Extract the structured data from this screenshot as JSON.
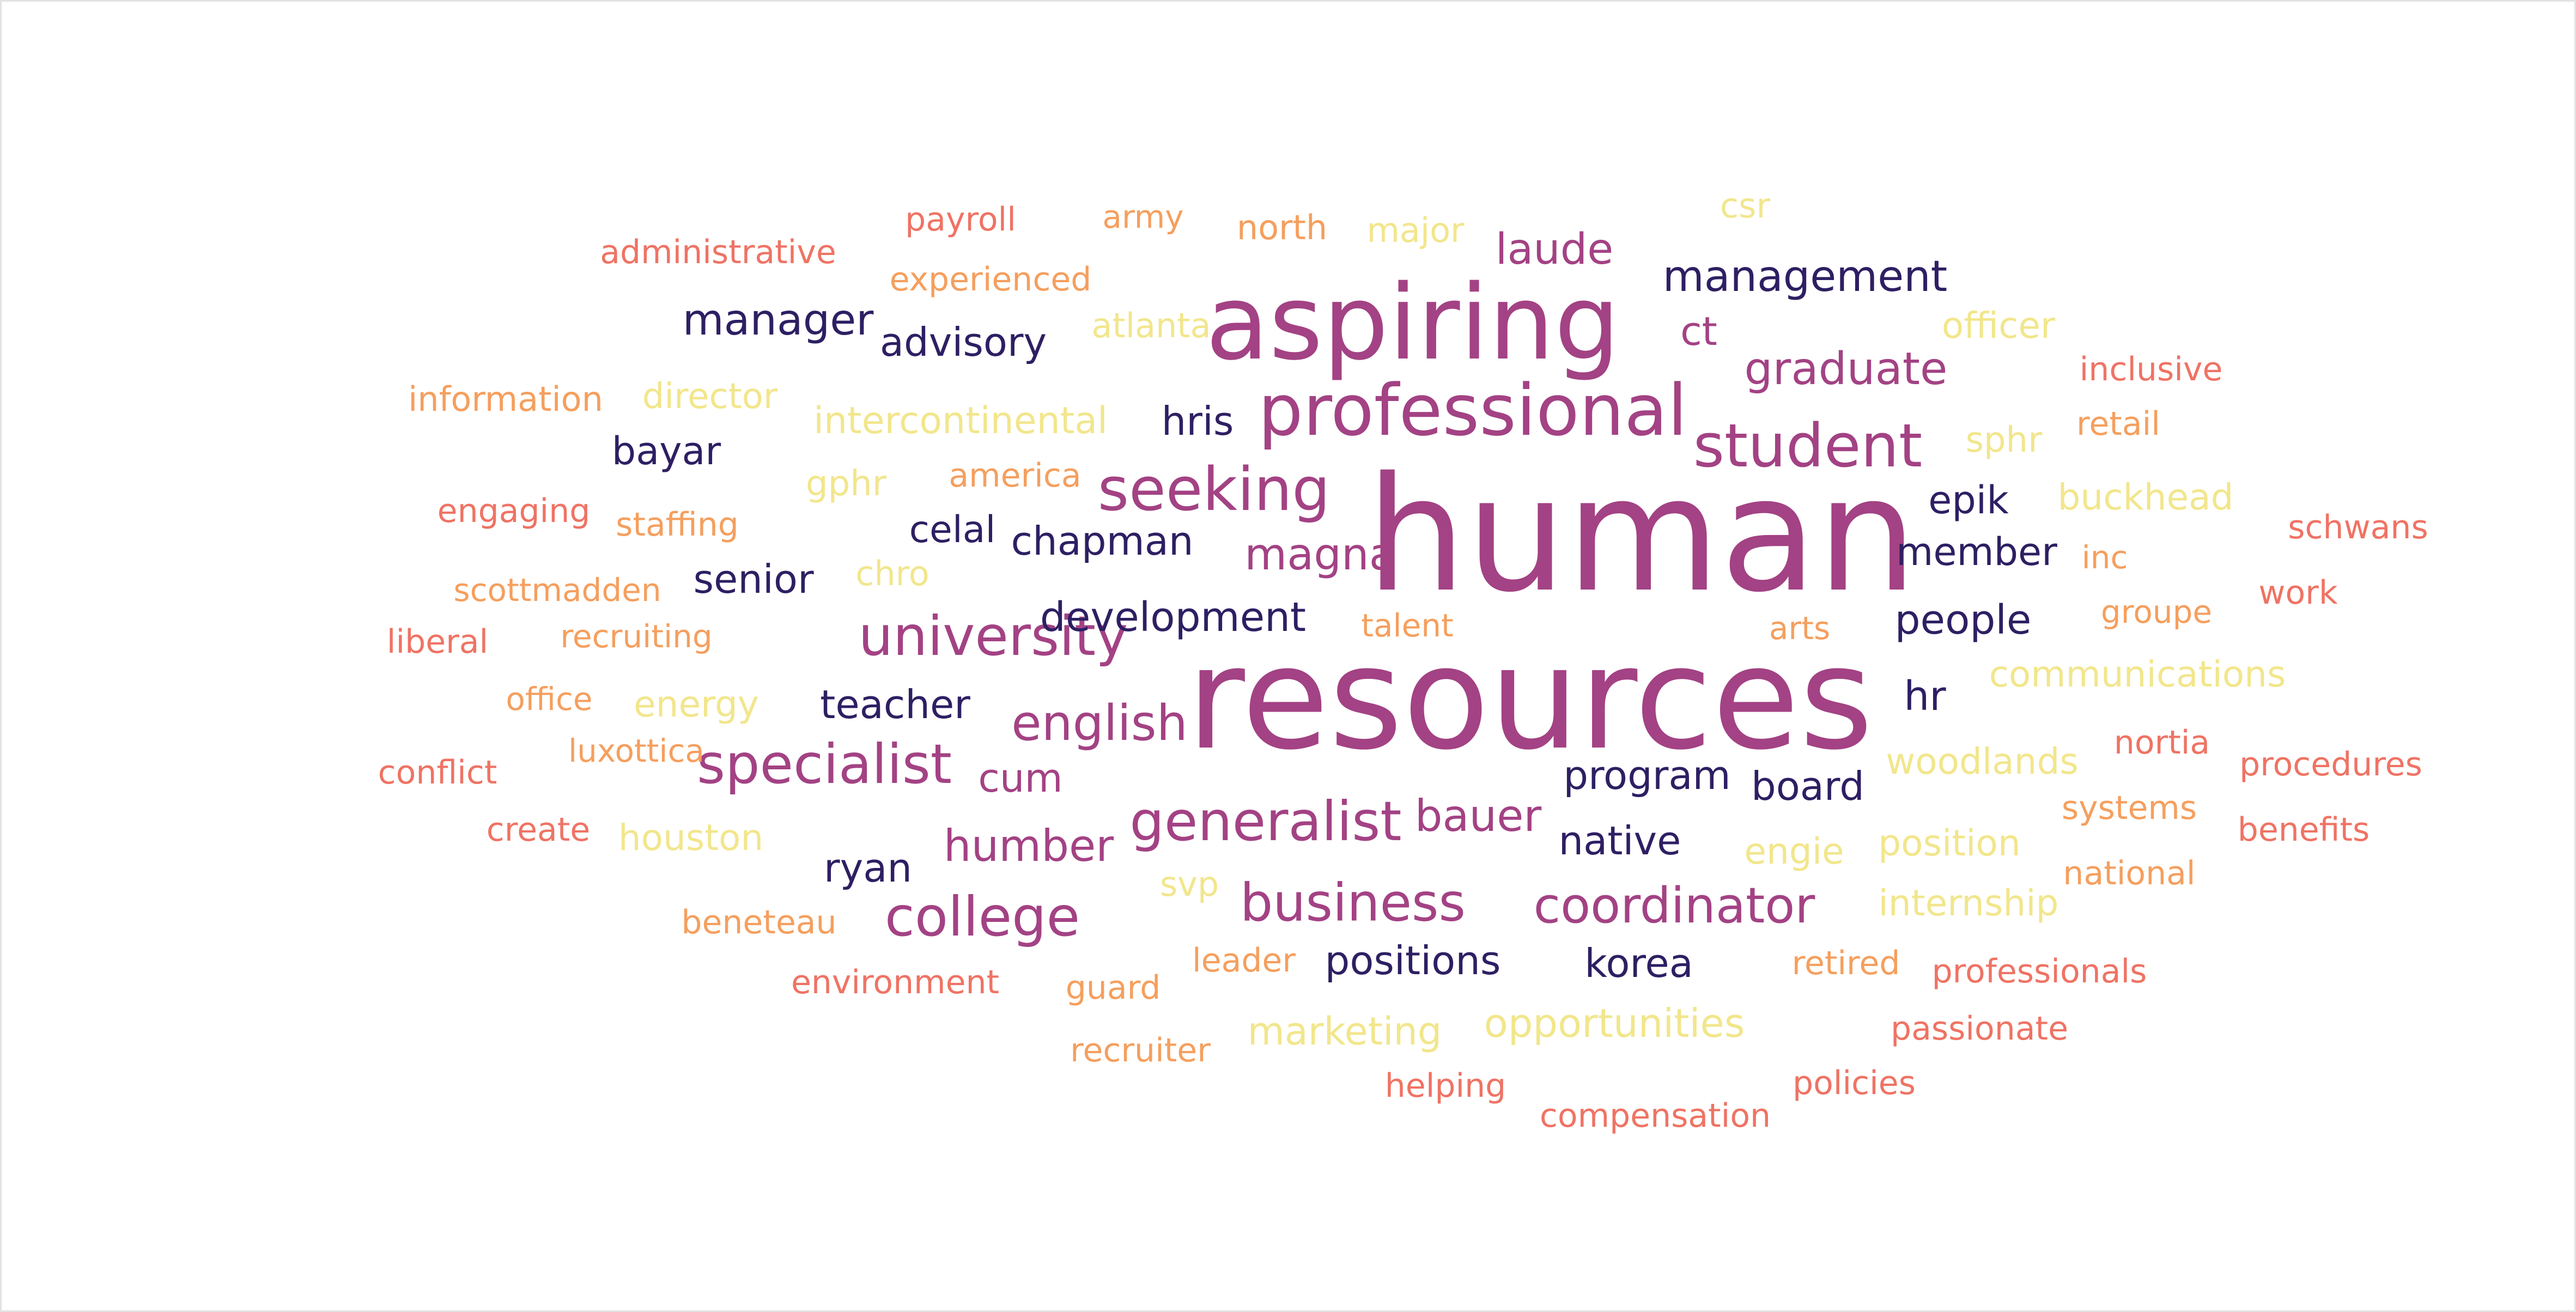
{
  "palette": {
    "magenta": "#a34284",
    "navy": "#2e1f63",
    "coral": "#ef7364",
    "orange": "#f59f5e",
    "yellow": "#f2e68c",
    "background": "#ffffff"
  },
  "words": [
    {
      "text": "human",
      "color": "magenta"
    },
    {
      "text": "resources",
      "color": "magenta"
    },
    {
      "text": "aspiring",
      "color": "magenta"
    },
    {
      "text": "professional",
      "color": "magenta"
    },
    {
      "text": "student",
      "color": "magenta"
    },
    {
      "text": "seeking",
      "color": "magenta"
    },
    {
      "text": "university",
      "color": "magenta"
    },
    {
      "text": "specialist",
      "color": "magenta"
    },
    {
      "text": "generalist",
      "color": "magenta"
    },
    {
      "text": "college",
      "color": "magenta"
    },
    {
      "text": "business",
      "color": "magenta"
    },
    {
      "text": "coordinator",
      "color": "magenta"
    },
    {
      "text": "english",
      "color": "magenta"
    },
    {
      "text": "graduate",
      "color": "magenta"
    },
    {
      "text": "laude",
      "color": "magenta"
    },
    {
      "text": "magna",
      "color": "magenta"
    },
    {
      "text": "humber",
      "color": "magenta"
    },
    {
      "text": "bauer",
      "color": "magenta"
    },
    {
      "text": "cum",
      "color": "magenta"
    },
    {
      "text": "ct",
      "color": "magenta"
    },
    {
      "text": "management",
      "color": "navy"
    },
    {
      "text": "manager",
      "color": "navy"
    },
    {
      "text": "advisory",
      "color": "navy"
    },
    {
      "text": "hris",
      "color": "navy"
    },
    {
      "text": "bayar",
      "color": "navy"
    },
    {
      "text": "celal",
      "color": "navy"
    },
    {
      "text": "chapman",
      "color": "navy"
    },
    {
      "text": "senior",
      "color": "navy"
    },
    {
      "text": "development",
      "color": "navy"
    },
    {
      "text": "epik",
      "color": "navy"
    },
    {
      "text": "member",
      "color": "navy"
    },
    {
      "text": "people",
      "color": "navy"
    },
    {
      "text": "hr",
      "color": "navy"
    },
    {
      "text": "teacher",
      "color": "navy"
    },
    {
      "text": "program",
      "color": "navy"
    },
    {
      "text": "board",
      "color": "navy"
    },
    {
      "text": "native",
      "color": "navy"
    },
    {
      "text": "ryan",
      "color": "navy"
    },
    {
      "text": "positions",
      "color": "navy"
    },
    {
      "text": "korea",
      "color": "navy"
    },
    {
      "text": "administrative",
      "color": "coral"
    },
    {
      "text": "payroll",
      "color": "coral"
    },
    {
      "text": "inclusive",
      "color": "coral"
    },
    {
      "text": "engaging",
      "color": "coral"
    },
    {
      "text": "schwans",
      "color": "coral"
    },
    {
      "text": "work",
      "color": "coral"
    },
    {
      "text": "liberal",
      "color": "coral"
    },
    {
      "text": "nortia",
      "color": "coral"
    },
    {
      "text": "procedures",
      "color": "coral"
    },
    {
      "text": "conflict",
      "color": "coral"
    },
    {
      "text": "benefits",
      "color": "coral"
    },
    {
      "text": "create",
      "color": "coral"
    },
    {
      "text": "environment",
      "color": "coral"
    },
    {
      "text": "professionals",
      "color": "coral"
    },
    {
      "text": "passionate",
      "color": "coral"
    },
    {
      "text": "helping",
      "color": "coral"
    },
    {
      "text": "policies",
      "color": "coral"
    },
    {
      "text": "compensation",
      "color": "coral"
    },
    {
      "text": "army",
      "color": "orange"
    },
    {
      "text": "north",
      "color": "orange"
    },
    {
      "text": "experienced",
      "color": "orange"
    },
    {
      "text": "information",
      "color": "orange"
    },
    {
      "text": "retail",
      "color": "orange"
    },
    {
      "text": "america",
      "color": "orange"
    },
    {
      "text": "staffing",
      "color": "orange"
    },
    {
      "text": "inc",
      "color": "orange"
    },
    {
      "text": "scottmadden",
      "color": "orange"
    },
    {
      "text": "recruiting",
      "color": "orange"
    },
    {
      "text": "talent",
      "color": "orange"
    },
    {
      "text": "arts",
      "color": "orange"
    },
    {
      "text": "groupe",
      "color": "orange"
    },
    {
      "text": "office",
      "color": "orange"
    },
    {
      "text": "luxottica",
      "color": "orange"
    },
    {
      "text": "systems",
      "color": "orange"
    },
    {
      "text": "national",
      "color": "orange"
    },
    {
      "text": "beneteau",
      "color": "orange"
    },
    {
      "text": "leader",
      "color": "orange"
    },
    {
      "text": "retired",
      "color": "orange"
    },
    {
      "text": "guard",
      "color": "orange"
    },
    {
      "text": "recruiter",
      "color": "orange"
    },
    {
      "text": "csr",
      "color": "yellow"
    },
    {
      "text": "major",
      "color": "yellow"
    },
    {
      "text": "atlanta",
      "color": "yellow"
    },
    {
      "text": "officer",
      "color": "yellow"
    },
    {
      "text": "director",
      "color": "yellow"
    },
    {
      "text": "intercontinental",
      "color": "yellow"
    },
    {
      "text": "sphr",
      "color": "yellow"
    },
    {
      "text": "gphr",
      "color": "yellow"
    },
    {
      "text": "buckhead",
      "color": "yellow"
    },
    {
      "text": "chro",
      "color": "yellow"
    },
    {
      "text": "communications",
      "color": "yellow"
    },
    {
      "text": "energy",
      "color": "yellow"
    },
    {
      "text": "woodlands",
      "color": "yellow"
    },
    {
      "text": "houston",
      "color": "yellow"
    },
    {
      "text": "engie",
      "color": "yellow"
    },
    {
      "text": "position",
      "color": "yellow"
    },
    {
      "text": "svp",
      "color": "yellow"
    },
    {
      "text": "internship",
      "color": "yellow"
    },
    {
      "text": "opportunities",
      "color": "yellow"
    },
    {
      "text": "marketing",
      "color": "yellow"
    }
  ]
}
